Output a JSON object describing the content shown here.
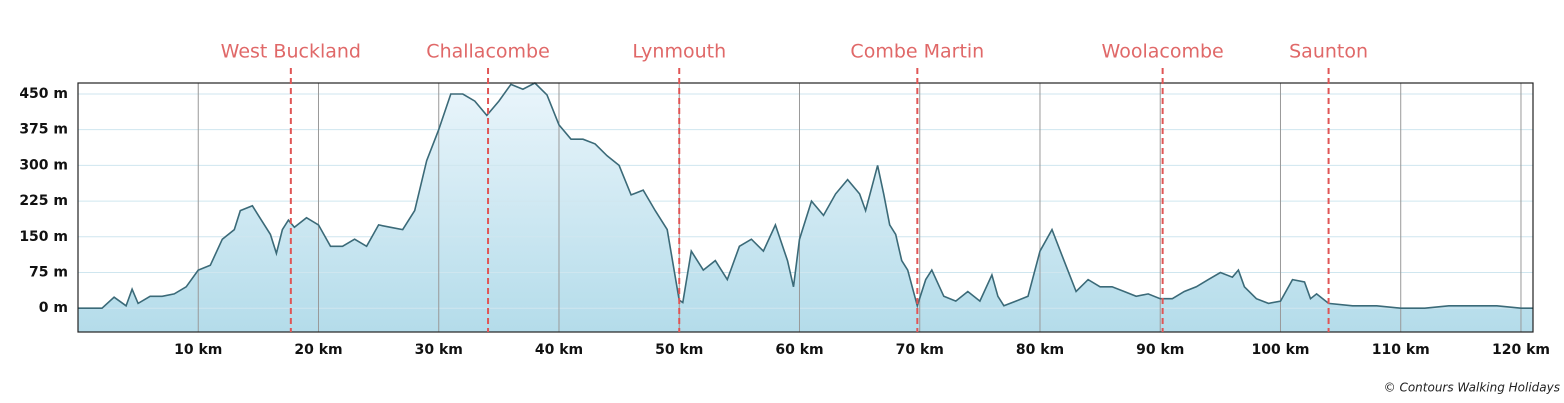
{
  "chart_data": {
    "type": "area",
    "x": [
      0,
      2,
      3,
      4,
      4.5,
      5,
      6,
      7,
      8,
      9,
      10,
      11,
      12,
      13,
      13.5,
      14.5,
      15,
      16,
      16.5,
      17,
      17.5,
      18,
      19,
      20,
      21,
      22,
      23,
      24,
      25,
      26,
      27,
      28,
      29,
      30,
      31,
      32,
      33,
      34,
      35,
      36,
      37,
      38,
      39,
      40,
      41,
      42,
      43,
      44,
      45,
      46,
      47,
      48,
      49,
      50,
      50.3,
      51,
      52,
      53,
      54,
      55,
      56,
      57,
      58,
      59,
      59.5,
      60,
      61,
      62,
      63,
      64,
      65,
      65.5,
      66.5,
      67,
      67.5,
      68,
      68.5,
      69,
      69.8,
      70.5,
      71,
      72,
      73,
      74,
      75,
      76,
      76.5,
      77,
      78,
      79,
      80,
      81,
      82,
      83,
      84,
      85,
      86,
      87,
      88,
      89,
      90,
      91,
      92,
      93,
      94,
      95,
      96,
      96.5,
      97,
      98,
      99,
      100,
      101,
      102,
      102.5,
      103,
      104,
      106,
      108,
      110,
      112,
      114,
      116,
      118,
      120,
      121
    ],
    "series": [
      {
        "color": "#3b6a78",
        "values": [
          0,
          0,
          23,
          5,
          40,
          10,
          25,
          25,
          30,
          45,
          80,
          90,
          145,
          165,
          205,
          215,
          195,
          155,
          115,
          165,
          185,
          170,
          190,
          175,
          130,
          130,
          145,
          130,
          175,
          170,
          165,
          205,
          310,
          375,
          450,
          450,
          435,
          405,
          435,
          470,
          460,
          473,
          448,
          385,
          355,
          355,
          345,
          320,
          300,
          238,
          248,
          205,
          165,
          17,
          12,
          120,
          80,
          100,
          60,
          130,
          145,
          120,
          175,
          100,
          45,
          145,
          225,
          195,
          240,
          270,
          240,
          205,
          300,
          240,
          175,
          155,
          100,
          80,
          5,
          60,
          80,
          25,
          15,
          35,
          15,
          70,
          25,
          5,
          15,
          25,
          120,
          165,
          100,
          35,
          60,
          45,
          45,
          35,
          25,
          30,
          20,
          20,
          35,
          45,
          60,
          75,
          65,
          80,
          45,
          20,
          10,
          15,
          60,
          55,
          20,
          30,
          10,
          5,
          5,
          0,
          0,
          5,
          5,
          5,
          0,
          0
        ]
      }
    ],
    "xlim": [
      0,
      121
    ],
    "ylim": [
      -50,
      473
    ],
    "yticks": [
      {
        "value": 0,
        "label": "0 m"
      },
      {
        "value": 75,
        "label": "75 m"
      },
      {
        "value": 150,
        "label": "150 m"
      },
      {
        "value": 225,
        "label": "225 m"
      },
      {
        "value": 300,
        "label": "300 m"
      },
      {
        "value": 375,
        "label": "375 m"
      },
      {
        "value": 450,
        "label": "450 m"
      }
    ],
    "xticks": [
      {
        "value": 10,
        "label": "10 km"
      },
      {
        "value": 20,
        "label": "20 km"
      },
      {
        "value": 30,
        "label": "30 km"
      },
      {
        "value": 40,
        "label": "40 km"
      },
      {
        "value": 50,
        "label": "50 km"
      },
      {
        "value": 60,
        "label": "60 km"
      },
      {
        "value": 70,
        "label": "70 km"
      },
      {
        "value": 80,
        "label": "80 km"
      },
      {
        "value": 90,
        "label": "90 km"
      },
      {
        "value": 100,
        "label": "100 km"
      },
      {
        "value": 110,
        "label": "110 km"
      },
      {
        "value": 120,
        "label": "120 km"
      }
    ],
    "markers": [
      {
        "name": "West Buckland",
        "x": 17.7
      },
      {
        "name": "Challacombe",
        "x": 34.1
      },
      {
        "name": "Lynmouth",
        "x": 50
      },
      {
        "name": "Combe Martin",
        "x": 69.8
      },
      {
        "name": "Woolacombe",
        "x": 90.2
      },
      {
        "name": "Saunton",
        "x": 104
      }
    ],
    "credit": "© Contours Walking Holidays"
  }
}
